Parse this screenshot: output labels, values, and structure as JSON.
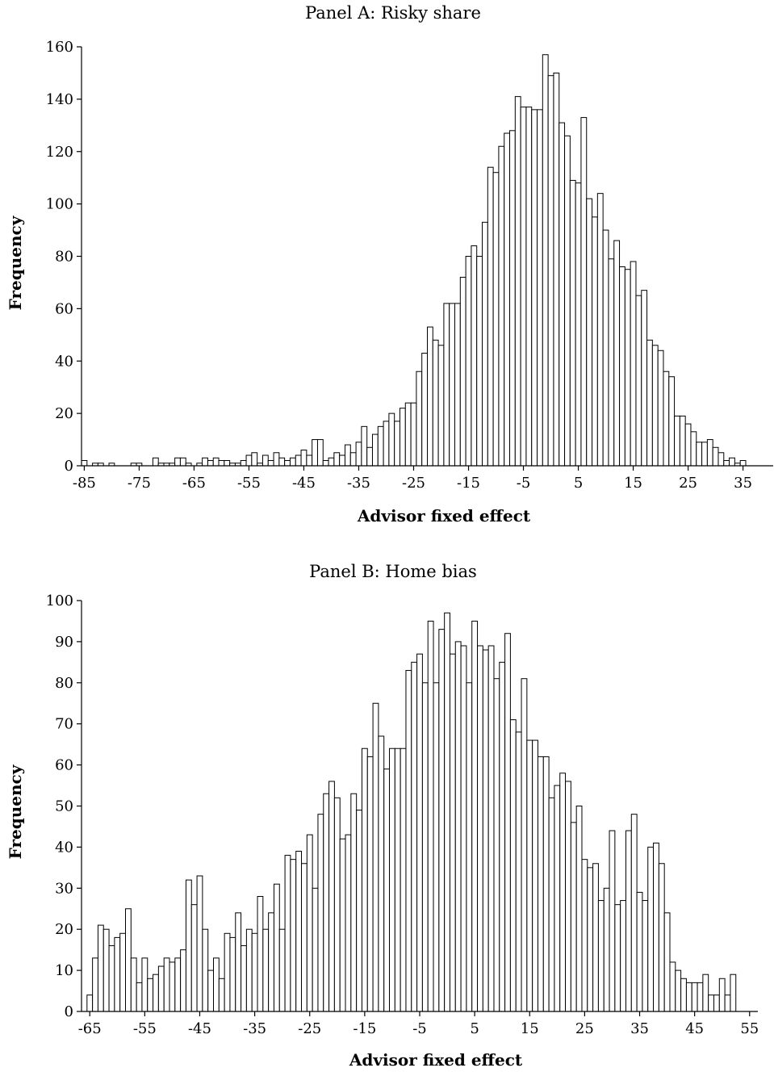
{
  "chart_data": [
    {
      "type": "bar",
      "title": "Panel A: Risky share",
      "xlabel": "Advisor fixed effect",
      "ylabel": "Frequency",
      "ylim": [
        0,
        160
      ],
      "yticks": [
        0,
        20,
        40,
        60,
        80,
        100,
        120,
        140,
        160
      ],
      "xlim": [
        -85.5,
        40.5
      ],
      "xticks": [
        -85,
        -75,
        -65,
        -55,
        -45,
        -35,
        -25,
        -15,
        -5,
        5,
        15,
        25,
        35
      ],
      "bin_start": -85,
      "bin_width": 1,
      "values": [
        2,
        0,
        1,
        1,
        0,
        1,
        0,
        0,
        0,
        1,
        1,
        0,
        0,
        3,
        1,
        1,
        1,
        3,
        3,
        1,
        0,
        1,
        3,
        2,
        3,
        2,
        2,
        1,
        1,
        2,
        4,
        5,
        1,
        4,
        2,
        5,
        3,
        2,
        3,
        4,
        6,
        4,
        10,
        10,
        2,
        3,
        5,
        4,
        8,
        5,
        9,
        15,
        7,
        12,
        15,
        17,
        20,
        17,
        22,
        24,
        24,
        36,
        43,
        53,
        48,
        46,
        62,
        62,
        62,
        72,
        80,
        84,
        80,
        93,
        114,
        112,
        122,
        127,
        128,
        141,
        137,
        137,
        136,
        136,
        157,
        149,
        150,
        131,
        126,
        109,
        108,
        133,
        102,
        95,
        104,
        90,
        79,
        86,
        76,
        75,
        78,
        65,
        67,
        48,
        46,
        44,
        36,
        34,
        19,
        19,
        16,
        13,
        9,
        9,
        10,
        7,
        5,
        2,
        3,
        1,
        2
      ]
    },
    {
      "type": "bar",
      "title": "Panel B: Home bias",
      "xlabel": "Advisor fixed effect",
      "ylabel": "Frequency",
      "ylim": [
        0,
        100
      ],
      "yticks": [
        0,
        10,
        20,
        30,
        40,
        50,
        60,
        70,
        80,
        90,
        100
      ],
      "xlim": [
        -66.5,
        56.5
      ],
      "xticks": [
        -65,
        -55,
        -45,
        -35,
        -25,
        -15,
        -5,
        5,
        15,
        25,
        35,
        45,
        55
      ],
      "bin_start": -65,
      "bin_width": 1,
      "values": [
        4,
        13,
        21,
        20,
        16,
        18,
        19,
        25,
        13,
        7,
        13,
        8,
        9,
        11,
        13,
        12,
        13,
        15,
        32,
        26,
        33,
        20,
        10,
        13,
        8,
        19,
        18,
        24,
        16,
        20,
        19,
        28,
        20,
        24,
        31,
        20,
        38,
        37,
        39,
        36,
        43,
        30,
        48,
        53,
        56,
        52,
        42,
        43,
        53,
        49,
        64,
        62,
        75,
        67,
        59,
        64,
        64,
        64,
        83,
        85,
        87,
        80,
        95,
        80,
        93,
        97,
        87,
        90,
        89,
        80,
        95,
        89,
        88,
        89,
        81,
        85,
        92,
        71,
        68,
        81,
        66,
        66,
        62,
        62,
        52,
        55,
        58,
        56,
        46,
        50,
        37,
        35,
        36,
        27,
        30,
        44,
        26,
        27,
        44,
        48,
        29,
        27,
        40,
        41,
        36,
        24,
        12,
        10,
        8,
        7,
        7,
        7,
        9,
        4,
        4,
        8,
        4,
        9
      ]
    }
  ]
}
